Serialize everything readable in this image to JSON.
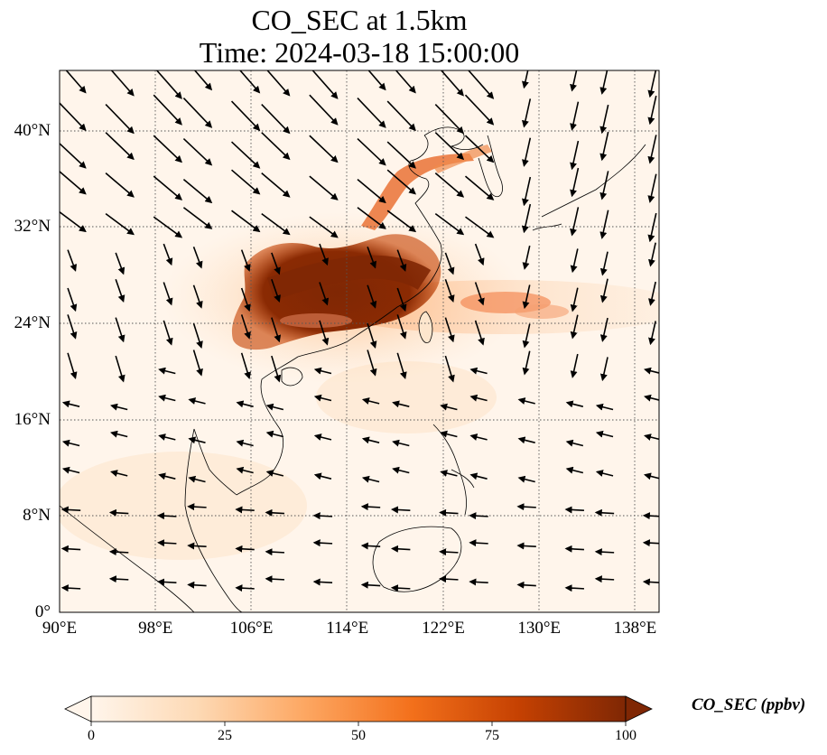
{
  "title": {
    "line1": "CO_SEC at 1.5km",
    "line2": "Time: 2024-03-18 15:00:00"
  },
  "map": {
    "extent": {
      "lon_min": 90,
      "lon_max": 140,
      "lat_min": 0,
      "lat_max": 45
    },
    "lat_ticks": [
      {
        "value": 0,
        "label": "0°"
      },
      {
        "value": 8,
        "label": "8°N"
      },
      {
        "value": 16,
        "label": "16°N"
      },
      {
        "value": 24,
        "label": "24°N"
      },
      {
        "value": 32,
        "label": "32°N"
      },
      {
        "value": 40,
        "label": "40°N"
      }
    ],
    "lon_ticks": [
      {
        "value": 90,
        "label": "90°E"
      },
      {
        "value": 98,
        "label": "98°E"
      },
      {
        "value": 106,
        "label": "106°E"
      },
      {
        "value": 114,
        "label": "114°E"
      },
      {
        "value": 122,
        "label": "122°E"
      },
      {
        "value": 130,
        "label": "130°E"
      },
      {
        "value": 138,
        "label": "138°E"
      }
    ],
    "grid": true,
    "wind_vectors": "shown"
  },
  "colorbar": {
    "label": "CO_SEC (ppbv)",
    "min": 0,
    "max": 100,
    "ticks": [
      {
        "value": 0,
        "label": "0"
      },
      {
        "value": 25,
        "label": "25"
      },
      {
        "value": 50,
        "label": "50"
      },
      {
        "value": 75,
        "label": "75"
      },
      {
        "value": 100,
        "label": "100"
      }
    ],
    "extend": "both",
    "colormap": [
      "#fff5eb",
      "#fdd9b4",
      "#fda762",
      "#f3701b",
      "#c54102",
      "#7f2704"
    ]
  }
}
